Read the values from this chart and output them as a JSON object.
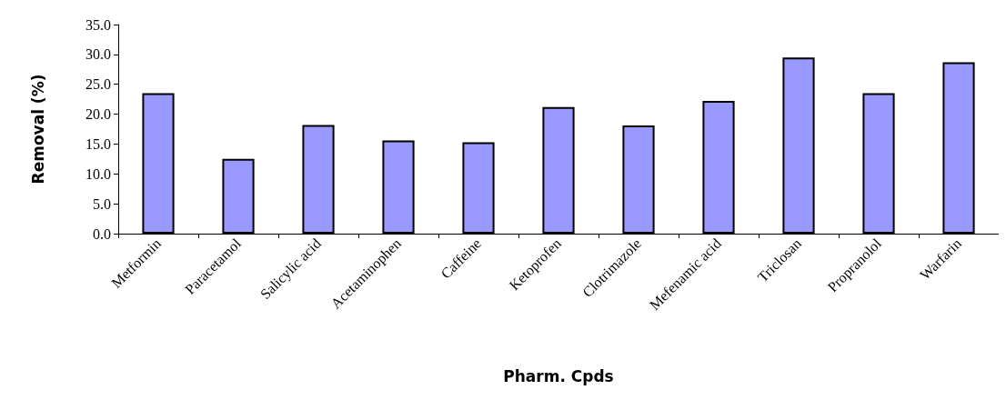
{
  "chart_data": {
    "type": "bar",
    "xlabel": "Pharm. Cpds",
    "ylabel": "Removal (%)",
    "categories": [
      "Metformin",
      "Paracetamol",
      "Salicylic acid",
      "Acetaminophen",
      "Caffeine",
      "Ketoprofen",
      "Clotrimazole",
      "Mefenamic acid",
      "Triclosan",
      "Propranolol",
      "Warfarin"
    ],
    "values": [
      23.5,
      12.5,
      18.2,
      15.6,
      15.3,
      21.2,
      18.1,
      22.2,
      29.5,
      23.5,
      28.7
    ],
    "color": "#9999ff",
    "ylim": [
      0,
      35
    ],
    "yticks": [
      {
        "value": 0,
        "label": "0.0"
      },
      {
        "value": 5,
        "label": "5.0"
      },
      {
        "value": 10,
        "label": "10.0"
      },
      {
        "value": 15,
        "label": "15.0"
      },
      {
        "value": 20,
        "label": "20.0"
      },
      {
        "value": 25,
        "label": "25.0"
      },
      {
        "value": 30,
        "label": "30.0"
      },
      {
        "value": 35,
        "label": "35.0"
      }
    ],
    "grid": false
  }
}
